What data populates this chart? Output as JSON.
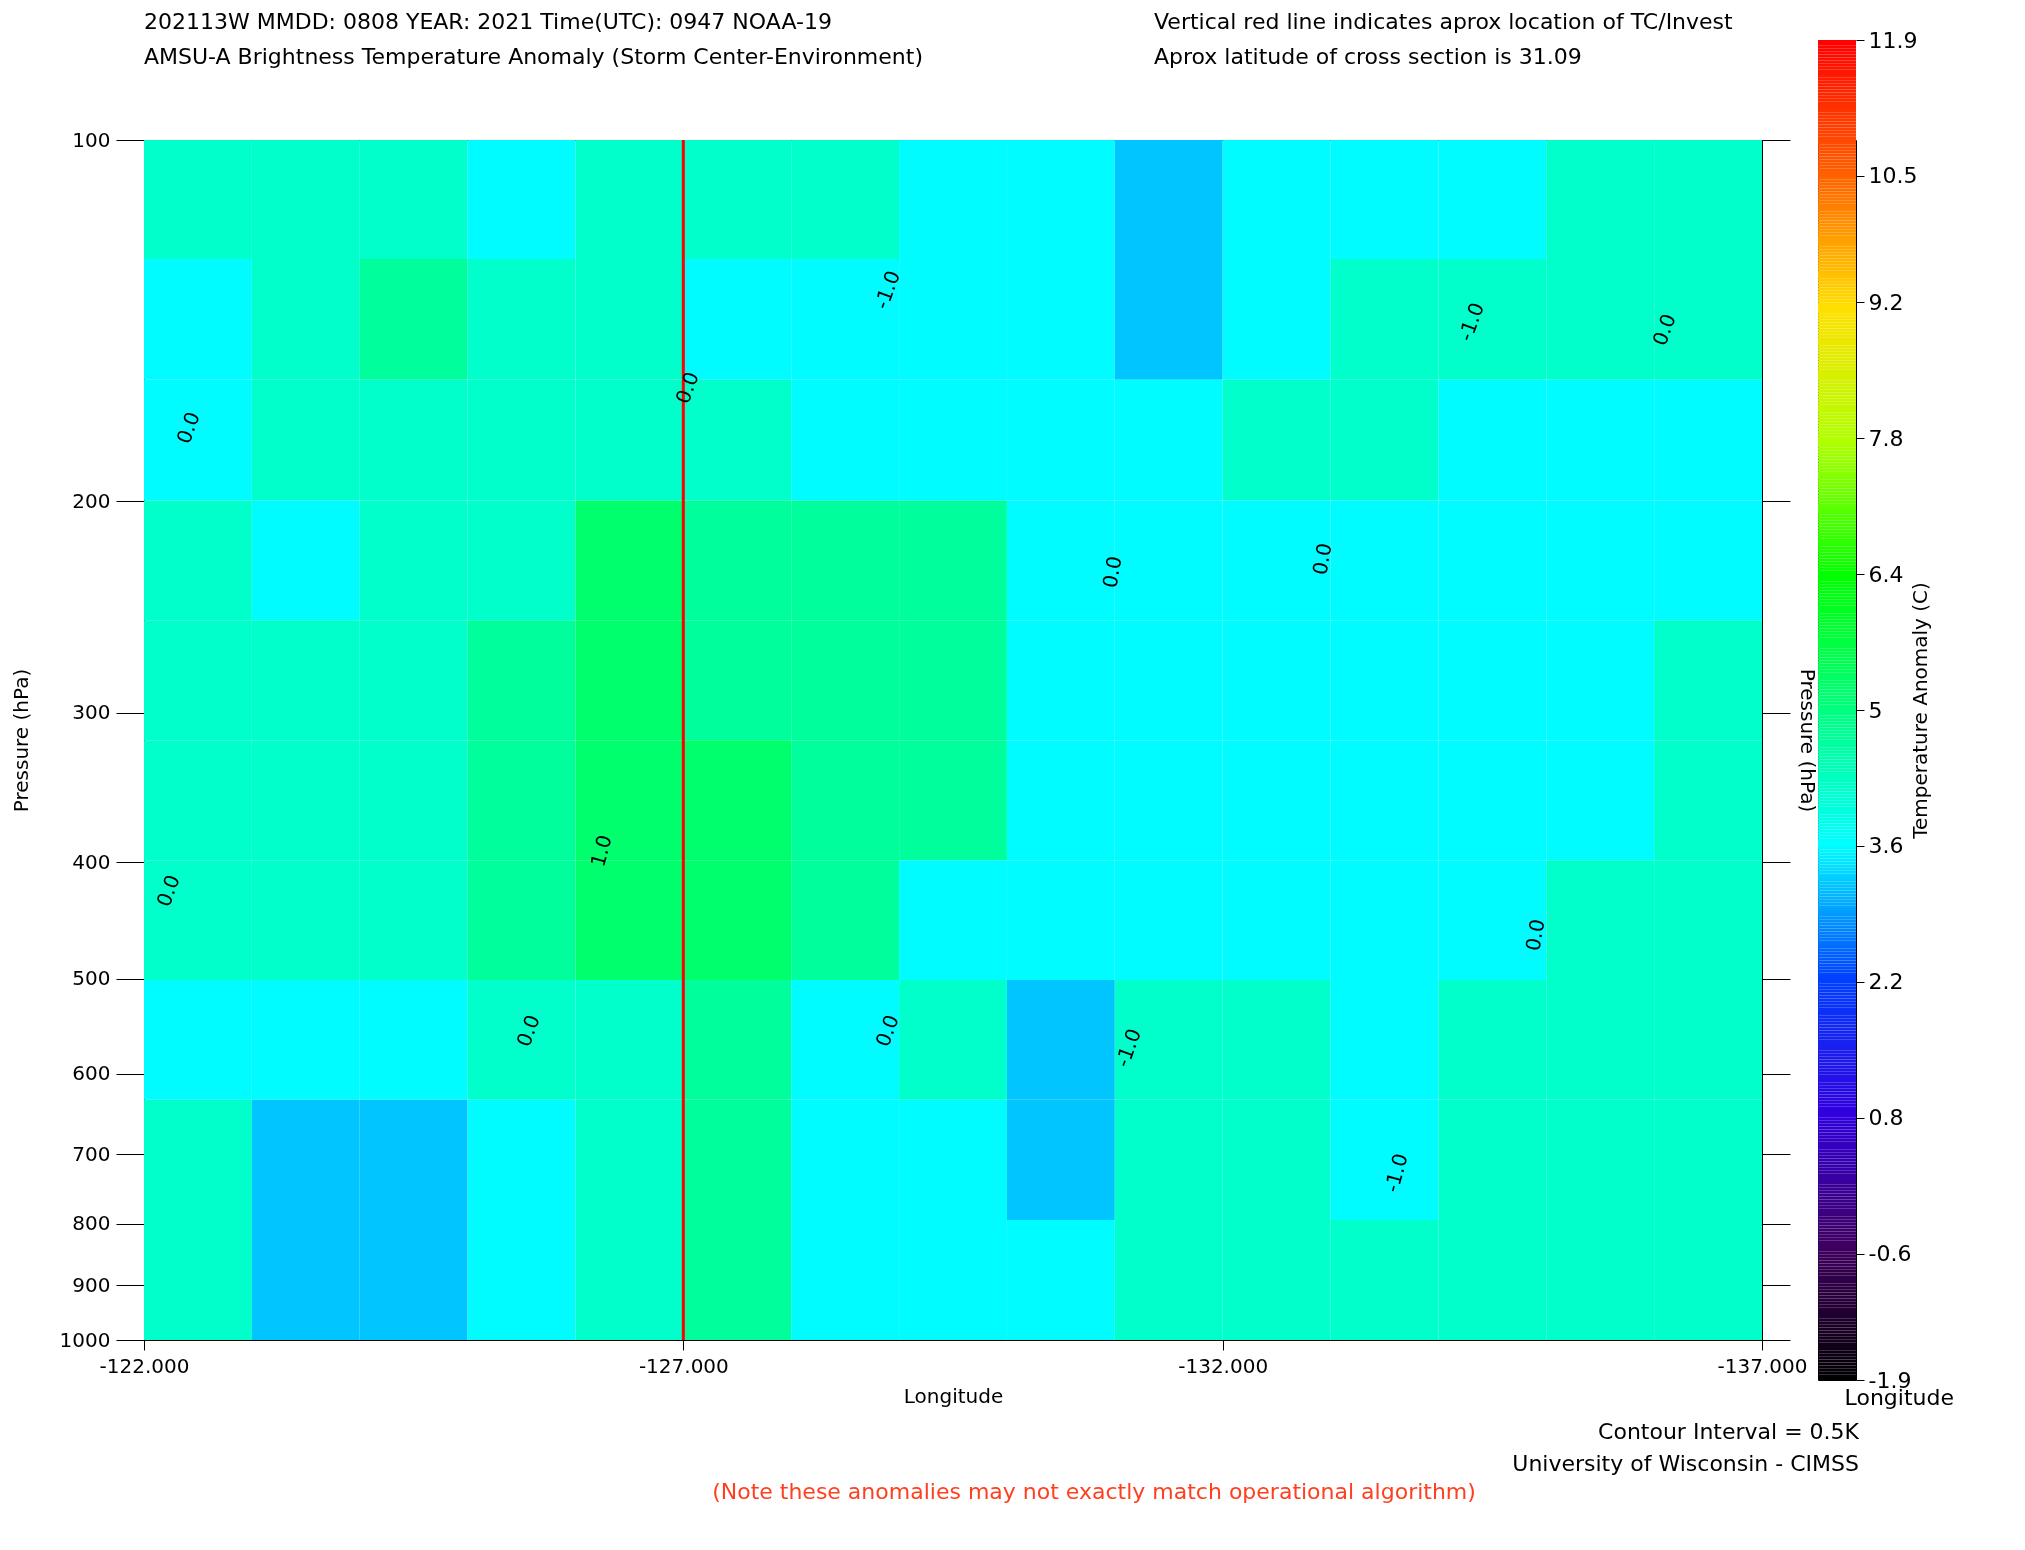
{
  "chart_data": {
    "type": "heatmap",
    "title": "202113W  MMDD: 0808 YEAR: 2021 Time(UTC): 0947 NOAA-19",
    "subtitle": "AMSU-A Brightness Temperature Anomaly (Storm Center-Environment)",
    "xlabel": "Longitude",
    "ylabel": "Pressure (hPa)",
    "y2label": "Pressure (hPa)",
    "clabel": "Temperature Anomaly (C)",
    "x": [
      -122.5,
      -123.5,
      -124.5,
      -125.5,
      -126.5,
      -127.5,
      -128.5,
      -129.5,
      -130.5,
      -131.5,
      -132.5,
      -133.5,
      -134.5,
      -135.5,
      -136.5
    ],
    "y": [
      112,
      141,
      178,
      224,
      282,
      355,
      447,
      562,
      708,
      891
    ],
    "cells": [
      [
        4.2,
        4.2,
        4.2,
        3.6,
        4.2,
        4.2,
        4.2,
        3.6,
        3.6,
        3.2,
        3.6,
        3.6,
        3.6,
        4.2,
        4.2
      ],
      [
        3.6,
        4.2,
        4.7,
        4.2,
        4.2,
        3.6,
        3.6,
        3.6,
        3.6,
        3.2,
        3.6,
        4.2,
        4.2,
        4.2,
        4.2
      ],
      [
        3.6,
        4.2,
        4.2,
        4.2,
        4.2,
        4.2,
        3.6,
        3.6,
        3.6,
        3.6,
        4.2,
        4.2,
        3.6,
        3.6,
        3.6
      ],
      [
        4.2,
        3.6,
        4.2,
        4.2,
        5.2,
        4.7,
        4.7,
        4.7,
        3.6,
        3.6,
        3.6,
        3.6,
        3.6,
        3.6,
        3.6
      ],
      [
        4.2,
        4.2,
        4.2,
        4.7,
        5.2,
        4.7,
        4.7,
        4.7,
        3.6,
        3.6,
        3.6,
        3.6,
        3.6,
        3.6,
        4.2
      ],
      [
        4.2,
        4.2,
        4.2,
        4.7,
        5.2,
        5.2,
        4.7,
        4.7,
        3.6,
        3.6,
        3.6,
        3.6,
        3.6,
        3.6,
        4.2
      ],
      [
        4.2,
        4.2,
        4.2,
        4.7,
        5.2,
        5.2,
        4.7,
        3.6,
        3.6,
        3.6,
        3.6,
        3.6,
        3.6,
        4.2,
        4.2
      ],
      [
        3.6,
        3.6,
        3.6,
        4.2,
        4.2,
        4.7,
        3.6,
        4.2,
        3.2,
        4.2,
        4.2,
        3.6,
        4.2,
        4.2,
        4.2
      ],
      [
        4.2,
        3.2,
        3.2,
        3.6,
        4.2,
        4.7,
        3.6,
        3.6,
        3.2,
        4.2,
        4.2,
        3.6,
        4.2,
        4.2,
        4.2
      ],
      [
        4.2,
        3.2,
        3.2,
        3.6,
        4.2,
        4.7,
        3.6,
        3.6,
        3.6,
        4.2,
        4.2,
        4.2,
        4.2,
        4.2,
        4.2
      ]
    ],
    "xlim": [
      -122,
      -137
    ],
    "xticks": [
      {
        "value": -122,
        "label": "-122.000"
      },
      {
        "value": -127,
        "label": "-127.000"
      },
      {
        "value": -132,
        "label": "-132.000"
      },
      {
        "value": -137,
        "label": "-137.000"
      }
    ],
    "ylim": [
      1000,
      100
    ],
    "yticks": [
      100,
      200,
      300,
      400,
      500,
      600,
      700,
      800,
      900,
      1000
    ],
    "log": "y",
    "clim": [
      -1.9,
      11.9
    ],
    "cticks": [
      -1.9,
      -0.6,
      0.8,
      2.2,
      3.6,
      5.0,
      6.4,
      7.8,
      9.2,
      10.5,
      11.9
    ],
    "ref_lines": [
      {
        "axis": "x",
        "value": -127,
        "color": "#ff0000"
      }
    ],
    "annotations": [
      "Vertical red line indicates aprox location of TC/Invest",
      "Aprox latitude of cross section is 31.09",
      "Contour Interval = 0.5K",
      "University of Wisconsin - CIMSS",
      "(Note these anomalies may not exactly match operational algorithm)",
      "Longitude",
      "0.0",
      "0.0",
      "0.0",
      "0.0",
      "0.0",
      "-1.0",
      "-1.0",
      "0.0",
      "0.0",
      "-1.0",
      "0.0",
      "0.0",
      "1.0",
      "-1.0"
    ]
  }
}
